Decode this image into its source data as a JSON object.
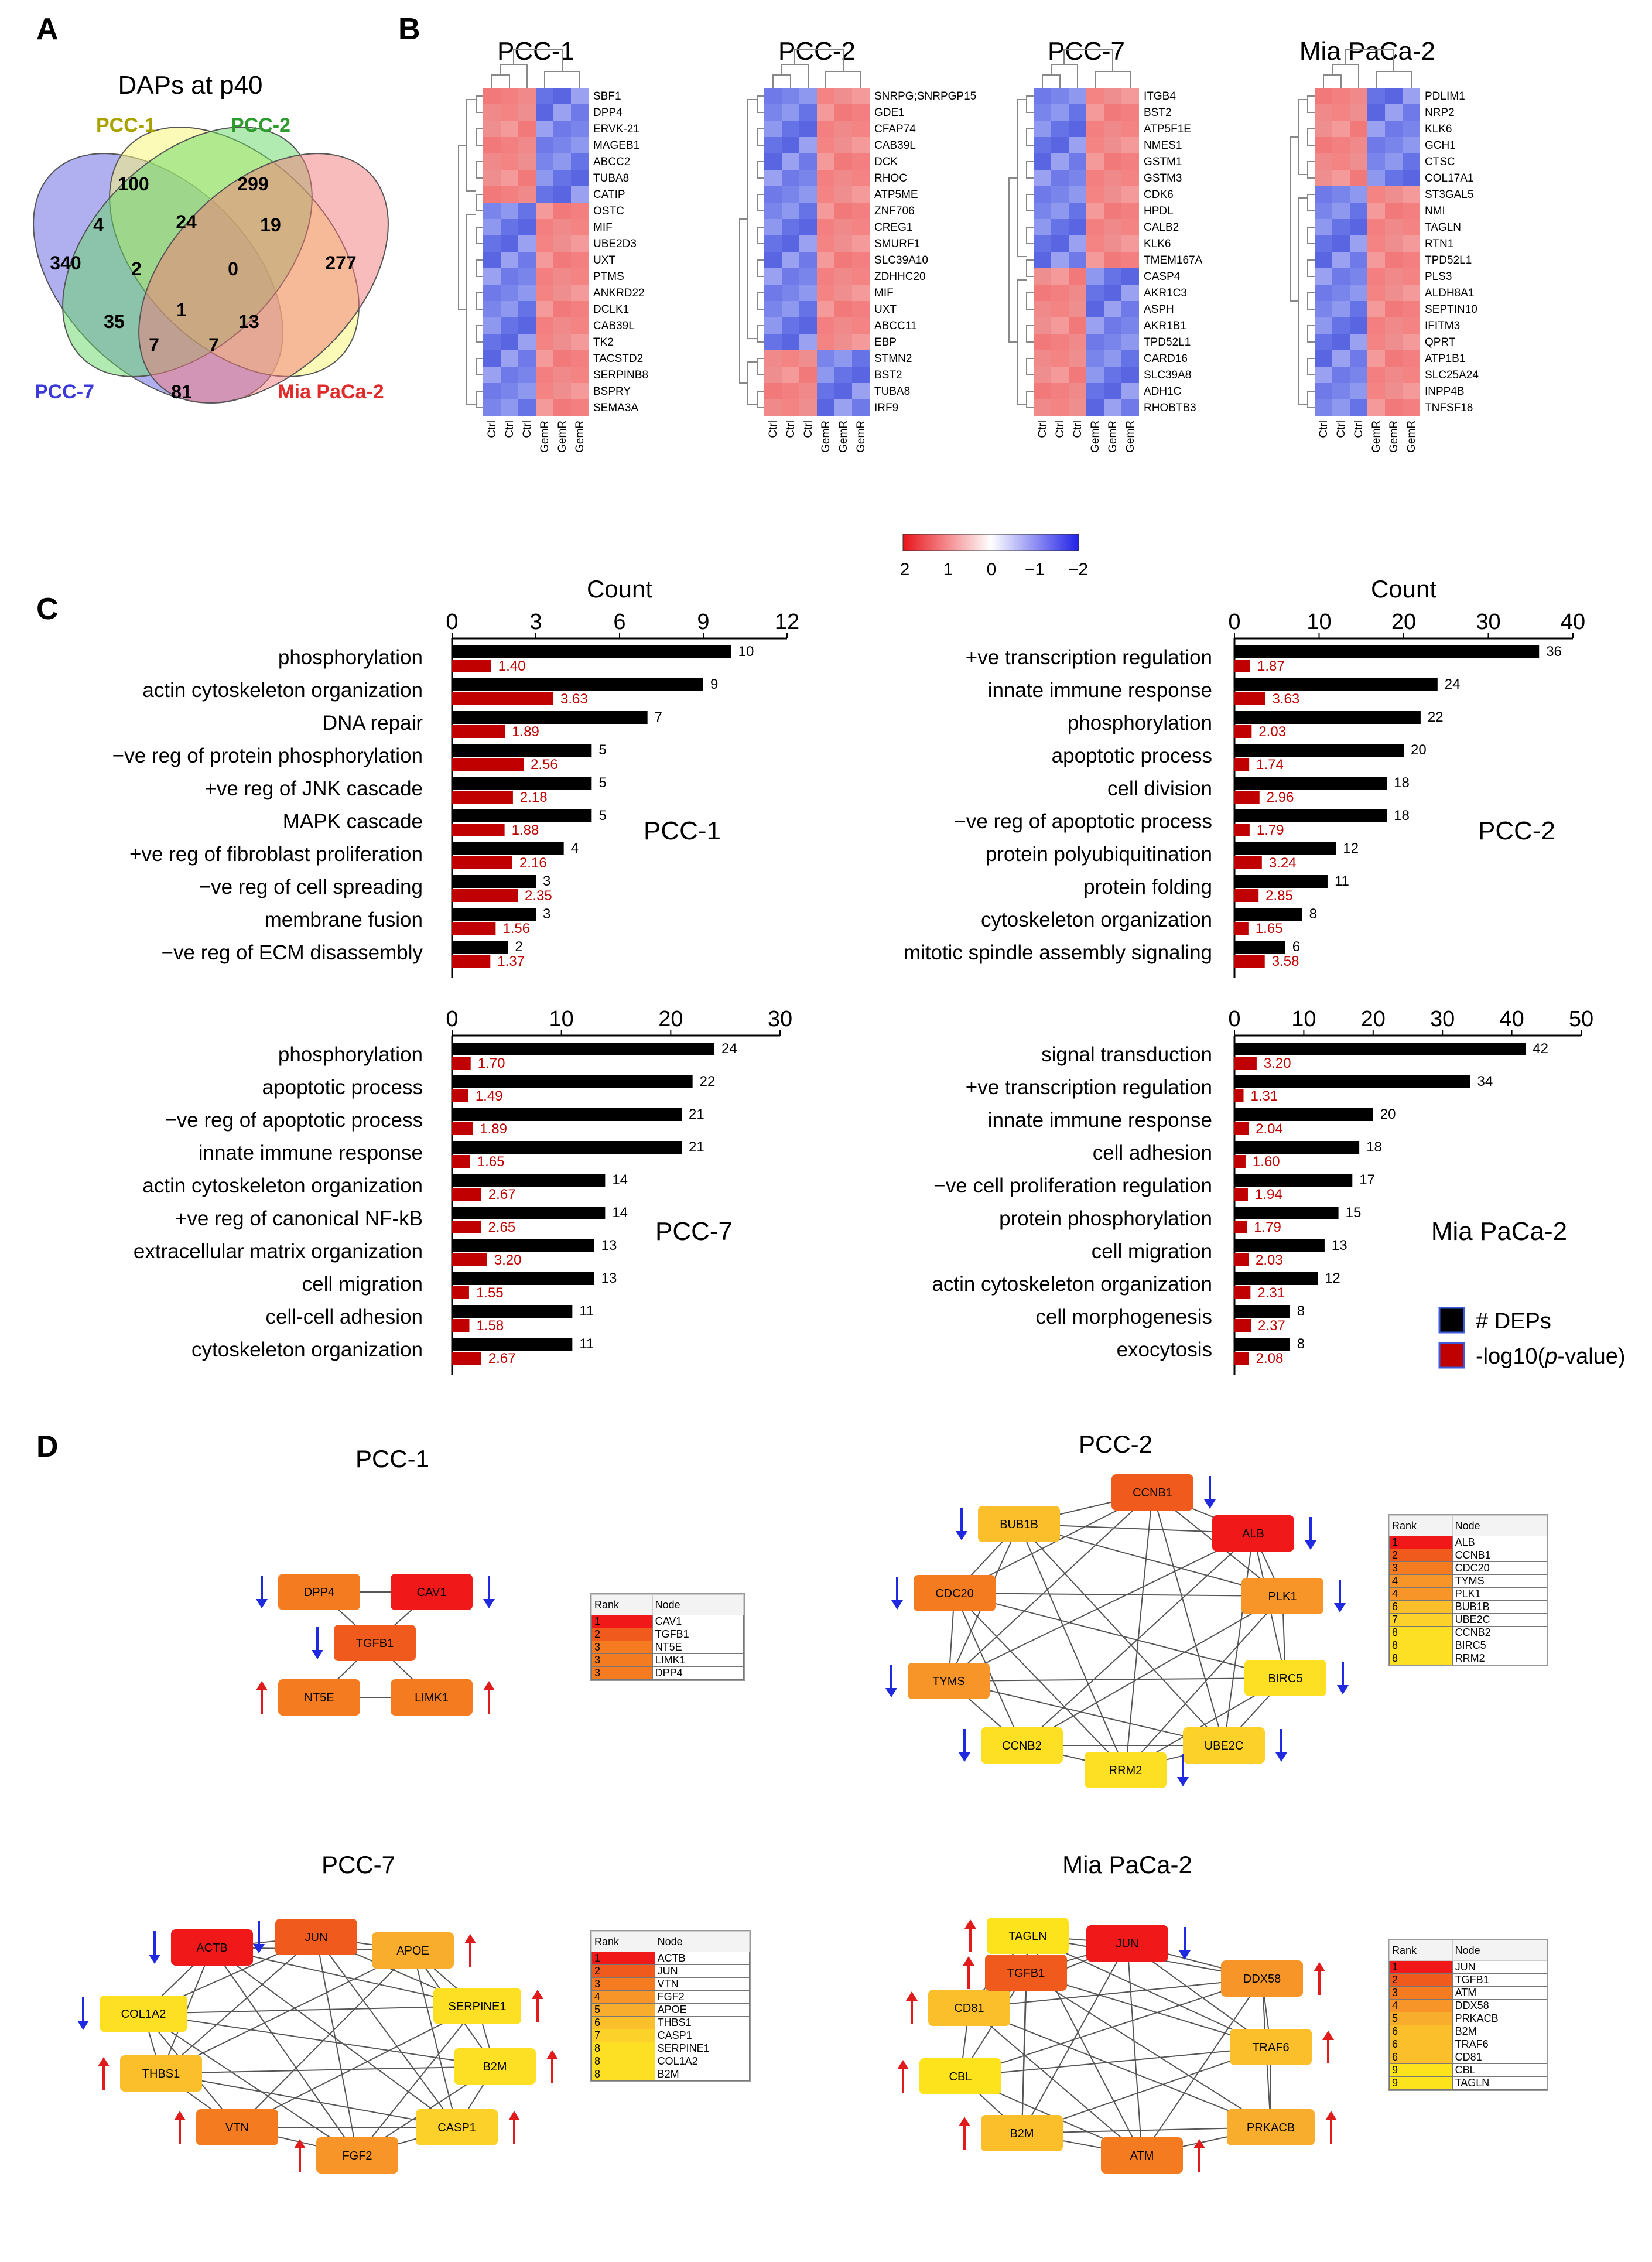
{
  "panels": {
    "a": "A",
    "b": "B",
    "c": "C",
    "d": "D"
  },
  "venn": {
    "title": "DAPs at p40",
    "sets": [
      {
        "name": "PCC-1",
        "color": "#a8a200"
      },
      {
        "name": "PCC-2",
        "color": "#2e9b2e"
      },
      {
        "name": "PCC-7",
        "color": "#3b3bd9"
      },
      {
        "name": "Mia PaCa-2",
        "color": "#e02b2b"
      }
    ],
    "counts": {
      "pcc7_only": "340",
      "pcc1_only": "100",
      "pcc2_only": "299",
      "mia_only": "277",
      "pcc7_pcc1": "4",
      "pcc1_pcc2": "24",
      "pcc2_mia": "19",
      "pcc7_pcc1_pcc2": "2",
      "pcc1_pcc2_mia": "0",
      "pcc7_pcc2": "35",
      "all": "1",
      "pcc1_mia": "13",
      "pcc7_pcc2_mia": "7",
      "pcc7_pcc1_mia": "7",
      "pcc7_mia": "81"
    }
  },
  "heatmaps": {
    "legend": {
      "ticks": [
        "2",
        "1",
        "0",
        "−1",
        "−2"
      ]
    },
    "maps": [
      {
        "title": "PCC-1",
        "cols": [
          "Ctrl",
          "Ctrl",
          "Ctrl",
          "GemR",
          "GemR",
          "GemR"
        ],
        "genes": [
          "SBF1",
          "DPP4",
          "ERVK-21",
          "MAGEB1",
          "ABCC2",
          "TUBA8",
          "CATIP",
          "OSTC",
          "MIF",
          "UBE2D3",
          "UXT",
          "PTMS",
          "ANKRD22",
          "DCLK1",
          "CAB39L",
          "TK2",
          "TACSTD2",
          "SERPINB8",
          "BSPRY",
          "SEMA3A"
        ],
        "split": 7
      },
      {
        "title": "PCC-2",
        "cols": [
          "Ctrl",
          "Ctrl",
          "Ctrl",
          "GemR",
          "GemR",
          "GemR"
        ],
        "genes": [
          "SNRPG;SNRPGP15",
          "GDE1",
          "CFAP74",
          "CAB39L",
          "DCK",
          "RHOC",
          "ATP5ME",
          "ZNF706",
          "CREG1",
          "SMURF1",
          "SLC39A10",
          "ZDHHC20",
          "MIF",
          "UXT",
          "ABCC11",
          "EBP",
          "STMN2",
          "BST2",
          "TUBA8",
          "IRF9"
        ],
        "split": 16
      },
      {
        "title": "PCC-7",
        "cols": [
          "Ctrl",
          "Ctrl",
          "Ctrl",
          "GemR",
          "GemR",
          "GemR"
        ],
        "genes": [
          "ITGB4",
          "BST2",
          "ATP5F1E",
          "NMES1",
          "GSTM1",
          "GSTM3",
          "CDK6",
          "HPDL",
          "CALB2",
          "KLK6",
          "TMEM167A",
          "CASP4",
          "AKR1C3",
          "ASPH",
          "AKR1B1",
          "TPD52L1",
          "CARD16",
          "SLC39A8",
          "ADH1C",
          "RHOBTB3"
        ],
        "split": 11
      },
      {
        "title": "Mia PaCa-2",
        "cols": [
          "Ctrl",
          "Ctrl",
          "Ctrl",
          "GemR",
          "GemR",
          "GemR"
        ],
        "genes": [
          "PDLIM1",
          "NRP2",
          "KLK6",
          "GCH1",
          "CTSC",
          "COL17A1",
          "ST3GAL5",
          "NMI",
          "TAGLN",
          "RTN1",
          "TPD52L1",
          "PLS3",
          "ALDH8A1",
          "SEPTIN10",
          "IFITM3",
          "QPRT",
          "ATP1B1",
          "SLC25A24",
          "INPP4B",
          "TNFSF18"
        ],
        "split": 6
      }
    ]
  },
  "go_legend": {
    "deps": "# DEPs",
    "pval_prefix": "-log10(",
    "pval_italic": "p",
    "pval_suffix": "-value)"
  },
  "chart_data": [
    {
      "type": "bar",
      "name": "PCC-1",
      "axis_title": "Count",
      "xlim": [
        0,
        12
      ],
      "ticks": [
        0,
        3,
        6,
        9,
        12
      ],
      "categories": [
        "phosphorylation",
        "actin cytoskeleton organization",
        "DNA repair",
        "−ve reg of protein phosphorylation",
        "+ve reg of JNK cascade",
        "MAPK cascade",
        "+ve reg of fibroblast proliferation",
        "−ve reg of cell spreading",
        "membrane fusion",
        "−ve reg of ECM disassembly"
      ],
      "series": [
        {
          "name": "# DEPs",
          "color": "#000000",
          "values": [
            10,
            9,
            7,
            5,
            5,
            5,
            4,
            3,
            3,
            2
          ]
        },
        {
          "name": "-log10(p-value)",
          "color": "#c00000",
          "values": [
            1.4,
            3.63,
            1.89,
            2.56,
            2.18,
            1.88,
            2.16,
            2.35,
            1.56,
            1.37
          ]
        }
      ]
    },
    {
      "type": "bar",
      "name": "PCC-2",
      "axis_title": "Count",
      "xlim": [
        0,
        40
      ],
      "ticks": [
        0,
        10,
        20,
        30,
        40
      ],
      "categories": [
        "+ve transcription regulation",
        "innate immune response",
        "phosphorylation",
        "apoptotic process",
        "cell division",
        "−ve reg of apoptotic process",
        "protein polyubiquitination",
        "protein folding",
        "cytoskeleton organization",
        "mitotic spindle assembly signaling"
      ],
      "series": [
        {
          "name": "# DEPs",
          "color": "#000000",
          "values": [
            36,
            24,
            22,
            20,
            18,
            18,
            12,
            11,
            8,
            6
          ]
        },
        {
          "name": "-log10(p-value)",
          "color": "#c00000",
          "values": [
            1.87,
            3.63,
            2.03,
            1.74,
            2.96,
            1.79,
            3.24,
            2.85,
            1.65,
            3.58
          ]
        }
      ]
    },
    {
      "type": "bar",
      "name": "PCC-7",
      "axis_title": "",
      "xlim": [
        0,
        30
      ],
      "ticks": [
        0,
        10,
        20,
        30
      ],
      "categories": [
        "phosphorylation",
        "apoptotic process",
        "−ve reg of apoptotic process",
        "innate immune response",
        "actin cytoskeleton organization",
        "+ve reg of canonical NF-kB",
        "extracellular matrix organization",
        "cell migration",
        "cell-cell adhesion",
        "cytoskeleton organization"
      ],
      "series": [
        {
          "name": "# DEPs",
          "color": "#000000",
          "values": [
            24,
            22,
            21,
            21,
            14,
            14,
            13,
            13,
            11,
            11
          ]
        },
        {
          "name": "-log10(p-value)",
          "color": "#c00000",
          "values": [
            1.7,
            1.49,
            1.89,
            1.65,
            2.67,
            2.65,
            3.2,
            1.55,
            1.58,
            2.67
          ]
        }
      ]
    },
    {
      "type": "bar",
      "name": "Mia PaCa-2",
      "axis_title": "",
      "xlim": [
        0,
        50
      ],
      "ticks": [
        0,
        10,
        20,
        30,
        40,
        50
      ],
      "categories": [
        "signal transduction",
        "+ve transcription regulation",
        "innate immune response",
        "cell adhesion",
        "−ve cell proliferation regulation",
        "protein phosphorylation",
        "cell migration",
        "actin cytoskeleton organization",
        "cell morphogenesis",
        "exocytosis"
      ],
      "series": [
        {
          "name": "# DEPs",
          "color": "#000000",
          "values": [
            42,
            34,
            20,
            18,
            17,
            15,
            13,
            12,
            8,
            8
          ]
        },
        {
          "name": "-log10(p-value)",
          "color": "#c00000",
          "values": [
            3.2,
            1.31,
            2.04,
            1.6,
            1.94,
            1.79,
            2.03,
            2.31,
            2.37,
            2.08
          ]
        }
      ]
    }
  ],
  "networks": {
    "table_header": {
      "rank": "Rank",
      "node": "Node"
    },
    "colors": {
      "r1": "#f01818",
      "r2": "#f05a1c",
      "r3": "#f47b20",
      "r4": "#f79528",
      "r5": "#f9ad2c",
      "r6": "#fbbf2c",
      "r7": "#fcd22a",
      "r8": "#fde023",
      "r9": "#fde31c"
    },
    "nets": [
      {
        "title": "PCC-1",
        "nodes": [
          {
            "label": "DPP4",
            "rank": 3,
            "arrow": "down"
          },
          {
            "label": "CAV1",
            "rank": 1,
            "arrow": "down"
          },
          {
            "label": "TGFB1",
            "rank": 2,
            "arrow": "down"
          },
          {
            "label": "NT5E",
            "rank": 3,
            "arrow": "up"
          },
          {
            "label": "LIMK1",
            "rank": 3,
            "arrow": "up"
          }
        ],
        "table": [
          [
            "1",
            "CAV1"
          ],
          [
            "2",
            "TGFB1"
          ],
          [
            "3",
            "NT5E"
          ],
          [
            "3",
            "LIMK1"
          ],
          [
            "3",
            "DPP4"
          ]
        ]
      },
      {
        "title": "PCC-2",
        "nodes": [
          {
            "label": "CCNB1",
            "rank": 2,
            "arrow": "down"
          },
          {
            "label": "ALB",
            "rank": 1,
            "arrow": "down"
          },
          {
            "label": "PLK1",
            "rank": 4,
            "arrow": "down"
          },
          {
            "label": "BIRC5",
            "rank": 8,
            "arrow": "down"
          },
          {
            "label": "UBE2C",
            "rank": 7,
            "arrow": "down"
          },
          {
            "label": "RRM2",
            "rank": 8,
            "arrow": "down"
          },
          {
            "label": "CCNB2",
            "rank": 8,
            "arrow": "down"
          },
          {
            "label": "TYMS",
            "rank": 4,
            "arrow": "down"
          },
          {
            "label": "CDC20",
            "rank": 3,
            "arrow": "down"
          },
          {
            "label": "BUB1B",
            "rank": 6,
            "arrow": "down"
          }
        ],
        "table": [
          [
            "1",
            "ALB"
          ],
          [
            "2",
            "CCNB1"
          ],
          [
            "3",
            "CDC20"
          ],
          [
            "4",
            "TYMS"
          ],
          [
            "4",
            "PLK1"
          ],
          [
            "6",
            "BUB1B"
          ],
          [
            "7",
            "UBE2C"
          ],
          [
            "8",
            "CCNB2"
          ],
          [
            "8",
            "BIRC5"
          ],
          [
            "8",
            "RRM2"
          ]
        ]
      },
      {
        "title": "PCC-7",
        "nodes": [
          {
            "label": "JUN",
            "rank": 2,
            "arrow": "down"
          },
          {
            "label": "APOE",
            "rank": 5,
            "arrow": "up"
          },
          {
            "label": "SERPINE1",
            "rank": 8,
            "arrow": "up"
          },
          {
            "label": "B2M",
            "rank": 8,
            "arrow": "up"
          },
          {
            "label": "CASP1",
            "rank": 7,
            "arrow": "up"
          },
          {
            "label": "FGF2",
            "rank": 4,
            "arrow": "up"
          },
          {
            "label": "VTN",
            "rank": 3,
            "arrow": "up"
          },
          {
            "label": "THBS1",
            "rank": 6,
            "arrow": "up"
          },
          {
            "label": "COL1A2",
            "rank": 8,
            "arrow": "down"
          },
          {
            "label": "ACTB",
            "rank": 1,
            "arrow": "down"
          }
        ],
        "table": [
          [
            "1",
            "ACTB"
          ],
          [
            "2",
            "JUN"
          ],
          [
            "3",
            "VTN"
          ],
          [
            "4",
            "FGF2"
          ],
          [
            "5",
            "APOE"
          ],
          [
            "6",
            "THBS1"
          ],
          [
            "7",
            "CASP1"
          ],
          [
            "8",
            "SERPINE1"
          ],
          [
            "8",
            "COL1A2"
          ],
          [
            "8",
            "B2M"
          ]
        ]
      },
      {
        "title": "Mia PaCa-2",
        "nodes": [
          {
            "label": "JUN",
            "rank": 1,
            "arrow": "down"
          },
          {
            "label": "DDX58",
            "rank": 4,
            "arrow": "up"
          },
          {
            "label": "TRAF6",
            "rank": 6,
            "arrow": "up"
          },
          {
            "label": "PRKACB",
            "rank": 5,
            "arrow": "up"
          },
          {
            "label": "ATM",
            "rank": 3,
            "arrow": "up"
          },
          {
            "label": "B2M",
            "rank": 6,
            "arrow": "up"
          },
          {
            "label": "CBL",
            "rank": 9,
            "arrow": "up"
          },
          {
            "label": "CD81",
            "rank": 6,
            "arrow": "up"
          },
          {
            "label": "TGFB1",
            "rank": 2,
            "arrow": "up"
          },
          {
            "label": "TAGLN",
            "rank": 9,
            "arrow": "up"
          }
        ],
        "table": [
          [
            "1",
            "JUN"
          ],
          [
            "2",
            "TGFB1"
          ],
          [
            "3",
            "ATM"
          ],
          [
            "4",
            "DDX58"
          ],
          [
            "5",
            "PRKACB"
          ],
          [
            "6",
            "B2M"
          ],
          [
            "6",
            "TRAF6"
          ],
          [
            "6",
            "CD81"
          ],
          [
            "9",
            "CBL"
          ],
          [
            "9",
            "TAGLN"
          ]
        ]
      }
    ]
  }
}
